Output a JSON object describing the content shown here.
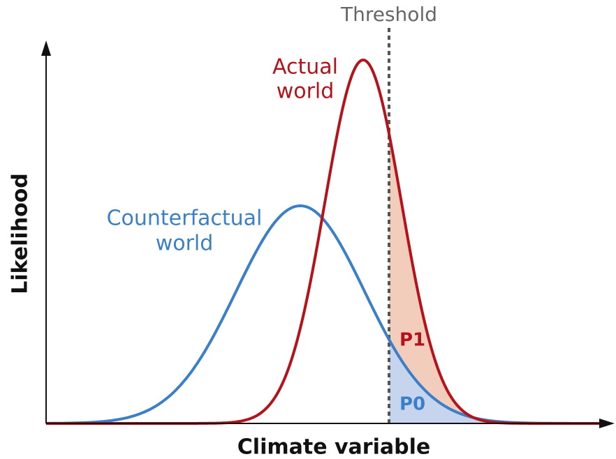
{
  "threshold_label": "Threshold",
  "actual_label": [
    "Actual",
    "world"
  ],
  "counterfactual_label": [
    "Counterfactual",
    "world"
  ],
  "p1_label": "P1",
  "p0_label": "P0",
  "y_axis_label": "Likelihood",
  "x_axis_label": "Climate variable"
}
